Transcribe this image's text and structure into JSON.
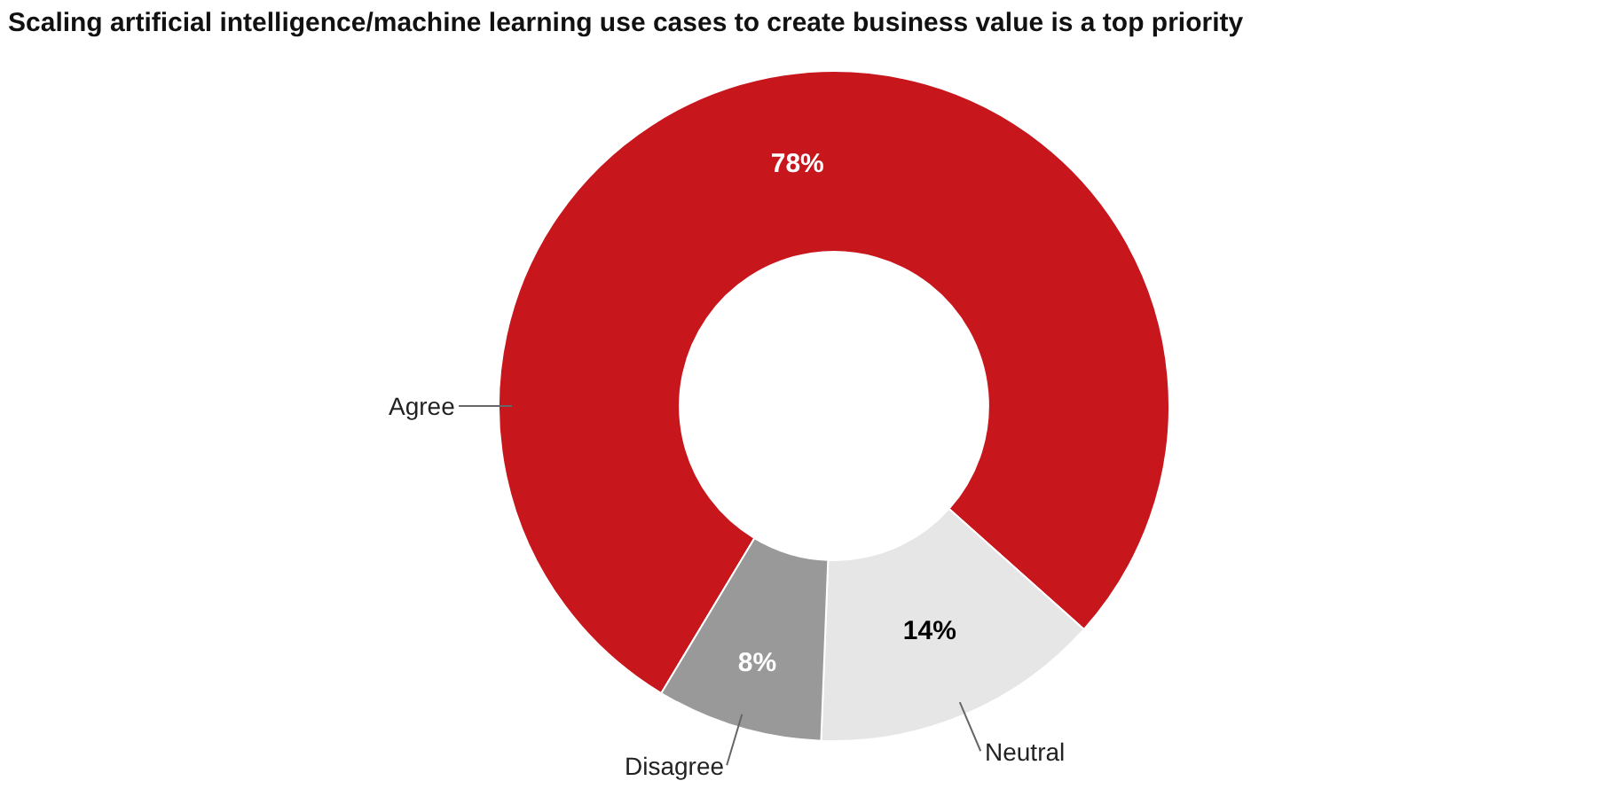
{
  "chart_data": {
    "type": "donut",
    "title": "Scaling artificial intelligence/machine learning use cases to create business value is a top priority",
    "categories": [
      "Agree",
      "Neutral",
      "Disagree"
    ],
    "values": [
      78,
      14,
      8
    ],
    "colors": [
      "#c8161d",
      "#e6e6e6",
      "#999999"
    ],
    "value_labels": [
      "78%",
      "14%",
      "8%"
    ],
    "legend": false
  }
}
